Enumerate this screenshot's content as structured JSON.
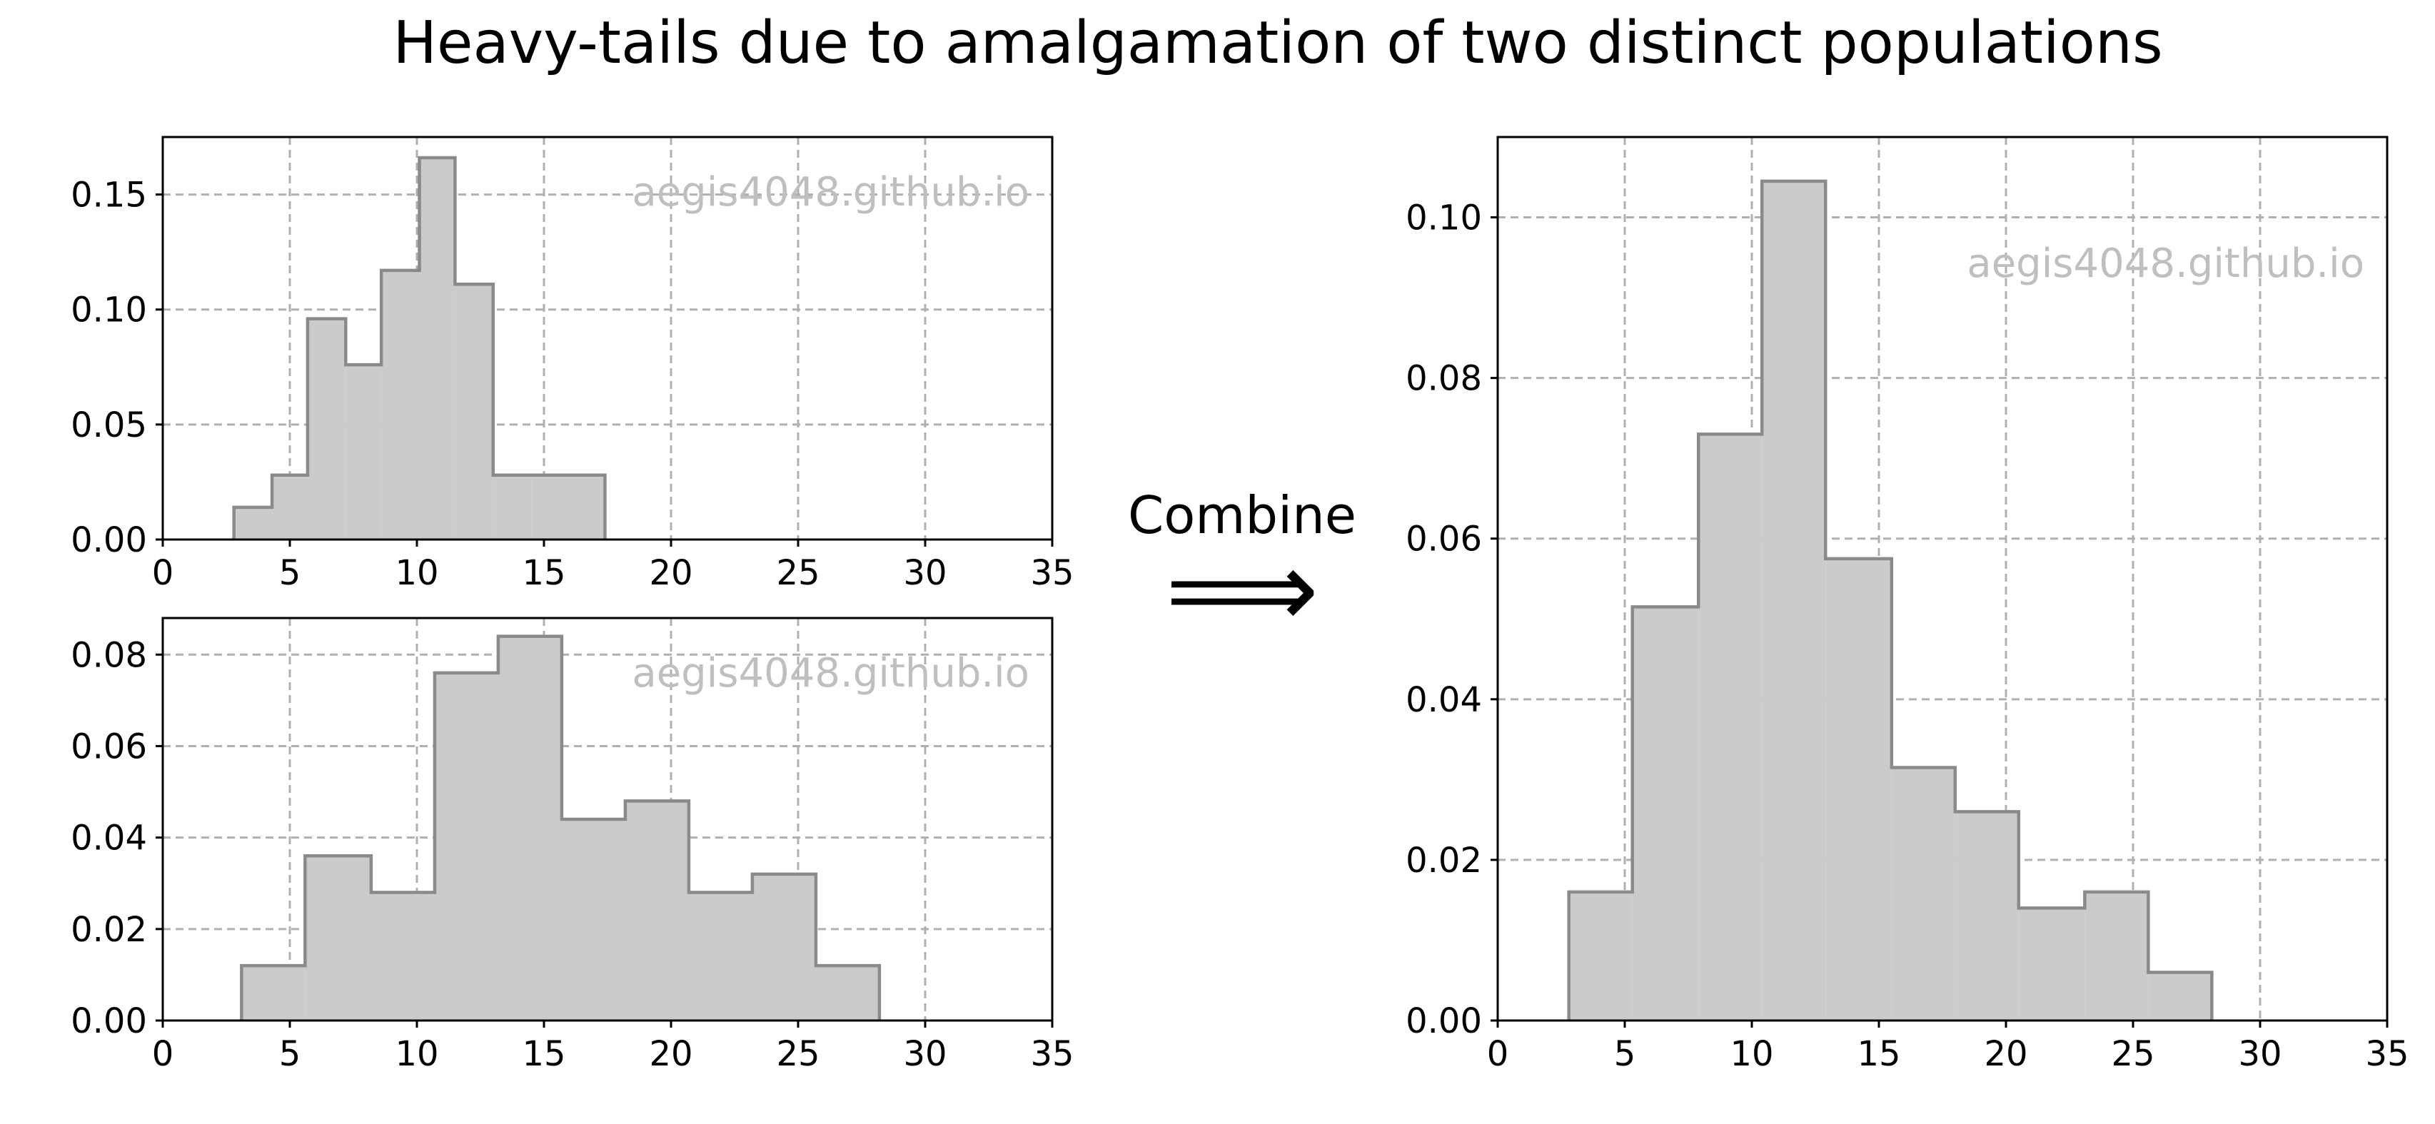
{
  "figure": {
    "title": "Heavy-tails due to amalgamation of two distinct populations",
    "annotation_text": "Combine",
    "arrow_glyph": "⟹"
  },
  "colors": {
    "bar_fill": "#cbcbcb",
    "bar_edge": "#8a8a8a",
    "grid": "#b0b0b0",
    "watermark": "#bfbfbf",
    "axis": "#000000"
  },
  "chart_data": [
    {
      "type": "bar",
      "subtype": "histogram-stepfilled",
      "watermark": "aegis4048.github.io",
      "bin_edges": [
        2.8,
        4.3,
        5.7,
        7.2,
        8.6,
        10.1,
        11.5,
        13.0,
        14.5,
        15.9,
        17.4
      ],
      "values": [
        0.014,
        0.028,
        0.096,
        0.076,
        0.117,
        0.166,
        0.111,
        0.028,
        0.028,
        0.028
      ],
      "xlim": [
        0,
        35
      ],
      "ylim": [
        0,
        0.175
      ],
      "xticks": [
        "0",
        "5",
        "10",
        "15",
        "20",
        "25",
        "30",
        "35"
      ],
      "yticks": [
        "0.00",
        "0.05",
        "0.10",
        "0.15"
      ],
      "grid": true
    },
    {
      "type": "bar",
      "subtype": "histogram-stepfilled",
      "watermark": "aegis4048.github.io",
      "bin_edges": [
        3.1,
        5.6,
        8.2,
        10.7,
        13.2,
        15.7,
        18.2,
        20.7,
        23.2,
        25.7,
        28.2
      ],
      "values": [
        0.012,
        0.036,
        0.028,
        0.076,
        0.084,
        0.044,
        0.048,
        0.028,
        0.032,
        0.012
      ],
      "xlim": [
        0,
        35
      ],
      "ylim": [
        0,
        0.088
      ],
      "xticks": [
        "0",
        "5",
        "10",
        "15",
        "20",
        "25",
        "30",
        "35"
      ],
      "yticks": [
        "0.00",
        "0.02",
        "0.04",
        "0.06",
        "0.08"
      ],
      "grid": true
    },
    {
      "type": "bar",
      "subtype": "histogram-stepfilled",
      "watermark": "aegis4048.github.io",
      "bin_edges": [
        2.8,
        5.3,
        7.9,
        10.4,
        12.9,
        15.5,
        18.0,
        20.5,
        23.1,
        25.6,
        28.1
      ],
      "values": [
        0.016,
        0.0515,
        0.073,
        0.1045,
        0.0575,
        0.0315,
        0.026,
        0.014,
        0.016,
        0.006
      ],
      "xlim": [
        0,
        35
      ],
      "ylim": [
        0,
        0.11
      ],
      "xticks": [
        "0",
        "5",
        "10",
        "15",
        "20",
        "25",
        "30",
        "35"
      ],
      "yticks": [
        "0.00",
        "0.02",
        "0.04",
        "0.06",
        "0.08",
        "0.10"
      ],
      "grid": true
    }
  ]
}
